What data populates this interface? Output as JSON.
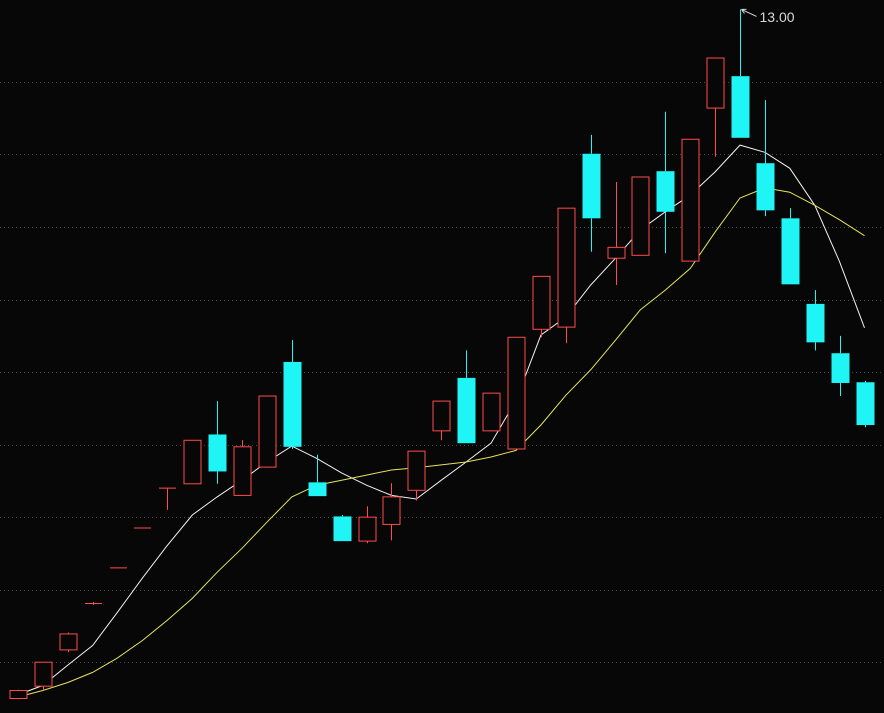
{
  "chart_data": {
    "type": "candlestick",
    "up_color": "#ff4b4b",
    "down_color": "#1ff5f5",
    "ylim": [
      3.3,
      13.13
    ],
    "yticks": [
      4,
      5,
      6,
      7,
      8,
      9,
      10,
      11,
      12
    ],
    "grid": true,
    "open": [
      3.5,
      3.67,
      4.17,
      4.81,
      5.3,
      5.85,
      6.4,
      6.46,
      7.14,
      6.3,
      6.69,
      8.14,
      6.48,
      6.01,
      5.67,
      5.9,
      6.37,
      7.19,
      7.92,
      7.19,
      6.94,
      8.59,
      8.62,
      11.01,
      9.57,
      9.61,
      10.77,
      9.53,
      11.64,
      12.08,
      10.88,
      10.12,
      8.94,
      8.26,
      7.86
    ],
    "high": [
      3.62,
      4.0,
      4.41,
      4.83,
      5.3,
      5.85,
      6.4,
      7.06,
      7.6,
      7.06,
      7.67,
      8.44,
      6.86,
      6.03,
      6.15,
      6.47,
      6.91,
      7.6,
      8.3,
      7.71,
      8.48,
      9.32,
      10.26,
      11.27,
      10.62,
      10.69,
      11.59,
      11.21,
      12.33,
      13.0,
      11.75,
      10.26,
      9.13,
      8.5,
      7.88
    ],
    "low": [
      3.49,
      3.62,
      4.14,
      4.79,
      5.3,
      5.85,
      6.1,
      6.46,
      6.46,
      6.3,
      6.69,
      6.94,
      6.29,
      5.67,
      5.64,
      5.68,
      6.23,
      7.06,
      7.02,
      7.19,
      6.94,
      8.48,
      8.4,
      9.66,
      9.2,
      9.61,
      9.64,
      9.53,
      10.97,
      11.23,
      10.15,
      9.21,
      8.3,
      7.67,
      7.24
    ],
    "close": [
      3.61,
      4.0,
      4.39,
      4.81,
      5.3,
      5.85,
      6.4,
      7.06,
      6.63,
      6.97,
      7.67,
      6.97,
      6.29,
      5.67,
      6.0,
      6.28,
      6.91,
      7.6,
      7.02,
      7.71,
      8.48,
      9.32,
      10.26,
      10.12,
      9.72,
      10.69,
      10.21,
      11.21,
      12.33,
      11.23,
      10.23,
      9.21,
      8.41,
      7.85,
      7.27
    ],
    "lines": [
      {
        "color": "#f2f2f2",
        "values": [
          3.55,
          3.68,
          3.96,
          4.23,
          4.69,
          5.16,
          5.61,
          6.03,
          6.28,
          6.51,
          6.76,
          6.98,
          6.81,
          6.61,
          6.44,
          6.3,
          6.25,
          6.51,
          6.76,
          7.02,
          7.61,
          8.51,
          8.76,
          9.2,
          9.57,
          9.96,
          10.21,
          10.44,
          10.76,
          11.13,
          11.03,
          10.81,
          10.3,
          9.52,
          8.61
        ]
      },
      {
        "color": "#e4e45a",
        "values": [
          3.52,
          3.61,
          3.72,
          3.86,
          4.06,
          4.3,
          4.58,
          4.88,
          5.24,
          5.57,
          5.93,
          6.28,
          6.44,
          6.51,
          6.58,
          6.65,
          6.68,
          6.72,
          6.76,
          6.83,
          6.92,
          7.27,
          7.68,
          8.03,
          8.44,
          8.86,
          9.13,
          9.43,
          9.93,
          10.4,
          10.54,
          10.48,
          10.3,
          10.1,
          9.88
        ]
      }
    ],
    "annotation": "13.00"
  }
}
